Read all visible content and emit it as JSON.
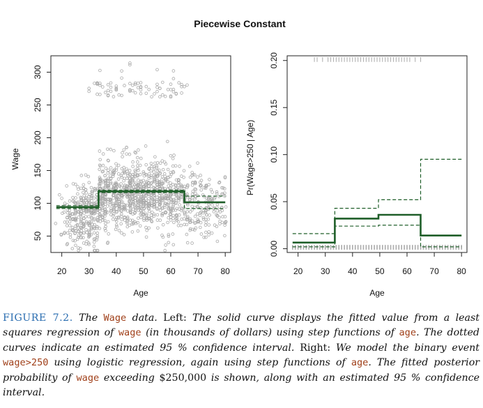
{
  "title": "Piecewise Constant",
  "chart_data": [
    {
      "type": "scatter",
      "panel": "left",
      "xlabel": "Age",
      "ylabel": "Wage",
      "xlim": [
        16,
        82
      ],
      "ylim": [
        25,
        325
      ],
      "x_ticks": [
        20,
        30,
        40,
        50,
        60,
        70,
        80
      ],
      "y_ticks": [
        50,
        100,
        150,
        200,
        250,
        300
      ],
      "grid": false,
      "point_color": "#aaaaaa",
      "fit_color": "#1e5e28",
      "fit": {
        "x": [
          18,
          33.5,
          33.5,
          65,
          65,
          80
        ],
        "y": [
          94.2,
          94.2,
          118.2,
          118.2,
          101.5,
          101.5
        ]
      },
      "ci_upper": {
        "x": [
          18,
          33.5,
          33.5,
          65,
          65,
          80
        ],
        "y": [
          96.5,
          96.5,
          120,
          120,
          111,
          111
        ]
      },
      "ci_lower": {
        "x": [
          18,
          33.5,
          33.5,
          65,
          65,
          80
        ],
        "y": [
          92,
          92,
          116.3,
          116.3,
          92,
          92
        ]
      }
    },
    {
      "type": "line",
      "panel": "right",
      "xlabel": "Age",
      "ylabel": "Pr(Wage>250 | Age)",
      "xlim": [
        16,
        82
      ],
      "ylim": [
        -0.004,
        0.205
      ],
      "x_ticks": [
        20,
        30,
        40,
        50,
        60,
        70,
        80
      ],
      "y_ticks": [
        "0.00",
        "0.05",
        "0.10",
        "0.15",
        "0.20"
      ],
      "grid": false,
      "fit_color": "#1e5e28",
      "fit": {
        "x": [
          18,
          33.5,
          33.5,
          49.5,
          49.5,
          65,
          65,
          80
        ],
        "y": [
          0.0065,
          0.0065,
          0.032,
          0.032,
          0.036,
          0.036,
          0.014,
          0.014
        ]
      },
      "ci_upper": {
        "x": [
          18,
          33.5,
          33.5,
          49.5,
          49.5,
          65,
          65,
          80
        ],
        "y": [
          0.016,
          0.016,
          0.043,
          0.043,
          0.052,
          0.052,
          0.095,
          0.095
        ]
      },
      "ci_lower": {
        "x": [
          18,
          33.5,
          33.5,
          49.5,
          49.5,
          65,
          65,
          80
        ],
        "y": [
          0.002,
          0.002,
          0.024,
          0.024,
          0.025,
          0.025,
          0.002,
          0.002
        ]
      },
      "rug_top_range": [
        26,
        65
      ],
      "rug_bottom_range": [
        18,
        80
      ]
    }
  ],
  "caption": {
    "figure_label": "FIGURE 7.2.",
    "p1": "The",
    "c1": "Wage",
    "p2": "data.",
    "p3": "Left:",
    "p4": "The solid curve displays the fitted value from a least squares regression of",
    "c2": "wage",
    "p5": "(in thousands of dollars) using step functions of",
    "c3": "age",
    "p6": ". The dotted curves indicate an estimated 95 % confidence interval.",
    "p7": "Right:",
    "p8": "We model the binary event",
    "c4": "wage>250",
    "p9": "using logistic regression, again using step functions of",
    "c5": "age",
    "p10": ". The fitted posterior probability of",
    "c6": "wage",
    "p11": "exceeding",
    "p12": "$250,000",
    "p13": "is shown, along with an estimated 95 % confidence interval."
  }
}
